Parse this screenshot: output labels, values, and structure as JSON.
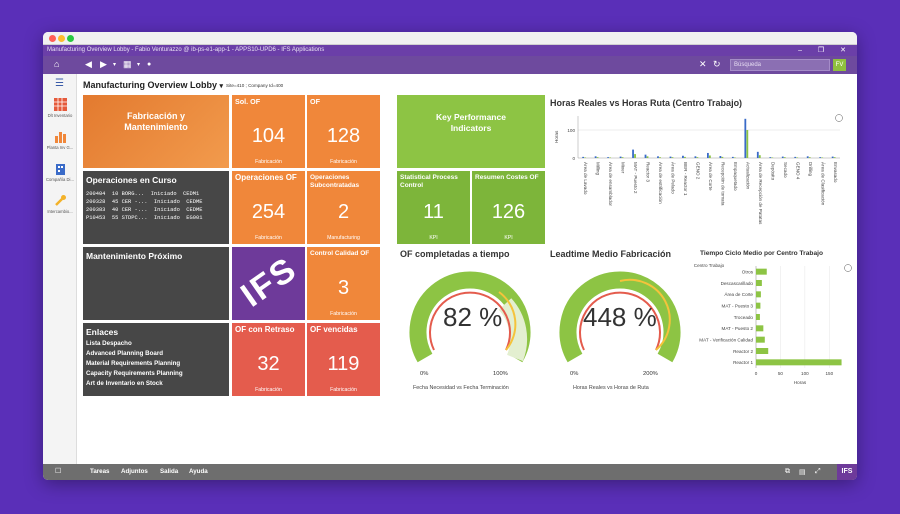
{
  "window": {
    "title": "Manufacturing Overview Lobby - Fabio Venturazzo @ ib-ps-e1-app-1 - APPS10-UPD6 - IFS Applications"
  },
  "toolbar": {
    "zoom": "94 %",
    "search_placeholder": "Búsqueda",
    "user_initials": "FV"
  },
  "sidebar": {
    "items": [
      {
        "label": "Dlt Inventario",
        "icon": "grid-table-icon"
      },
      {
        "label": "Planta Inv G...",
        "icon": "bar-chart-icon"
      },
      {
        "label": "Compañía Di...",
        "icon": "building-icon"
      },
      {
        "label": "Intercambio...",
        "icon": "wrench-icon"
      }
    ]
  },
  "page": {
    "title": "Manufacturing Overview Lobby",
    "context": "Site=410 ; Company Id=400"
  },
  "tiles": {
    "fabricacion": {
      "title": "Fabricación y Mantenimiento"
    },
    "sol_of": {
      "title": "Sol. OF",
      "value": "104",
      "footer": "Fabricación"
    },
    "of": {
      "title": "OF",
      "value": "128",
      "footer": "Fabricación"
    },
    "operaciones_curso": {
      "title": "Operaciones en Curso",
      "rows": [
        "200404  10 BORG...  Iniciado  CEDM1",
        "200328  45 CER -...  Iniciado  CEDME",
        "200383  40 CER -...  Iniciado  CEDME",
        "P10453  55 STDPC...  Iniciado  EG001"
      ]
    },
    "operaciones_of": {
      "title": "Operaciones OF",
      "value": "254",
      "footer": "Fabricación"
    },
    "operaciones_sub": {
      "title": "Operaciones Subcontratadas",
      "value": "2",
      "footer": "Manufacturing"
    },
    "kpi": {
      "title": "Key Performance Indicators"
    },
    "statistical": {
      "title": "Statistical Process Control",
      "value": "11",
      "footer": "KPI"
    },
    "resumen": {
      "title": "Resumen Costes OF",
      "value": "126",
      "footer": "KPI"
    },
    "mantenimiento": {
      "title": "Mantenimiento Próximo"
    },
    "ifs_logo": {
      "text": "IFS"
    },
    "control_calidad": {
      "title": "Control Calidad OF",
      "value": "3",
      "footer": "Fabricación"
    },
    "enlaces": {
      "title": "Enlaces",
      "links": [
        "Lista Despacho",
        "Advanced Planning Board",
        "Material Requirements Planning",
        "Capacity Requirements Planning",
        "Art de Inventario en Stock"
      ]
    },
    "retraso": {
      "title": "OF con Retraso",
      "value": "32",
      "footer": "Fabricación"
    },
    "vencidas": {
      "title": "OF vencidas",
      "value": "119",
      "footer": "Fabricación"
    }
  },
  "gauges": [
    {
      "title": "OF completadas a tiempo",
      "value_text": "82 %",
      "value": 82,
      "min_label": "0%",
      "max_label": "100%",
      "subtitle": "Fecha Necesidad vs Fecha Terminación"
    },
    {
      "title": "Leadtime Medio Fabricación",
      "value_text": "448 %",
      "value": 448,
      "min_label": "0%",
      "max_label": "200%",
      "subtitle": "Horas Reales vs Horas de Ruta"
    }
  ],
  "chart_data": [
    {
      "type": "bar",
      "title": "Horas Reales vs Horas Ruta (Centro Trabajo)",
      "ylabel": "Horas",
      "xlabel": "Centro Trabajo",
      "ylim": [
        0,
        150
      ],
      "yticks": [
        "100",
        "0"
      ],
      "categories": [
        "Área de Lavado",
        "Milling",
        "Área de ensamblador",
        "Mixer",
        "MAT - Puesto 2",
        "Reactor 3",
        "Área de estrificación",
        "Área de Pelado",
        "BER - Reactor 1",
        "GENO 2",
        "Área de Corte",
        "Recepción de tomata",
        "Empaquetado",
        "Actualización",
        "Área de Recepción de Patatas",
        "Depósito",
        "Secado",
        "GENO 4",
        "Drilling",
        "Área de Clasificación",
        "Envasado"
      ],
      "series": [
        {
          "values": [
            4,
            6,
            3,
            5,
            30,
            12,
            6,
            5,
            8,
            6,
            18,
            7,
            4,
            140,
            22,
            3,
            5,
            4,
            6,
            3,
            5
          ]
        },
        {
          "values": [
            2,
            3,
            2,
            3,
            14,
            6,
            3,
            3,
            4,
            3,
            9,
            4,
            2,
            100,
            10,
            2,
            3,
            2,
            3,
            2,
            3
          ]
        }
      ],
      "grid": true
    },
    {
      "type": "bar",
      "orientation": "horizontal",
      "title": "Tiempo Ciclo Medio por Centro Trabajo",
      "xlabel": "Horas",
      "xlim": [
        0,
        180
      ],
      "xticks": [
        "0",
        "50",
        "100",
        "150"
      ],
      "categories": [
        "Otros",
        "Descascarillado",
        "Área de Corte",
        "MAT - Puesto 3",
        "Troceado",
        "MAT - Puesto 2",
        "MAT - Verificación Calidad",
        "Reactor 2",
        "Reactor 1"
      ],
      "values": [
        22,
        12,
        10,
        9,
        8,
        15,
        18,
        25,
        175
      ],
      "grid": true
    }
  ],
  "bottom_bar": {
    "items": [
      "Tareas",
      "Adjuntos",
      "Salida",
      "Ayuda"
    ],
    "logo": "IFS"
  },
  "colors": {
    "orange": "#f0873a",
    "dark": "#474747",
    "red": "#e45c4d",
    "green": "#8dc444",
    "purple": "#6e4a9e"
  }
}
